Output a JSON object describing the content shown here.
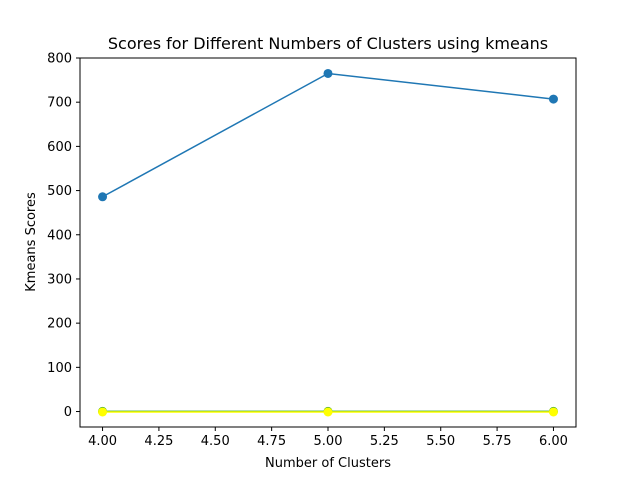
{
  "chart_data": {
    "type": "line",
    "title": "Scores for Different Numbers of Clusters using kmeans",
    "xlabel": "Number of Clusters",
    "ylabel": "Kmeans Scores",
    "xlim": [
      3.9,
      6.1
    ],
    "ylim": [
      -35,
      800
    ],
    "x_ticks": [
      "4.00",
      "4.25",
      "4.50",
      "4.75",
      "5.00",
      "5.25",
      "5.50",
      "5.75",
      "6.00"
    ],
    "x_tick_values": [
      4.0,
      4.25,
      4.5,
      4.75,
      5.0,
      5.25,
      5.5,
      5.75,
      6.0
    ],
    "y_ticks": [
      "0",
      "100",
      "200",
      "300",
      "400",
      "500",
      "600",
      "700",
      "800"
    ],
    "y_tick_values": [
      0,
      100,
      200,
      300,
      400,
      500,
      600,
      700,
      800
    ],
    "grid": false,
    "x": [
      4,
      5,
      6
    ],
    "series": [
      {
        "color": "#1f77b4",
        "marker": "circle",
        "values": [
          486,
          765,
          707
        ]
      },
      {
        "color": "#2ca02c",
        "marker": "circle",
        "values": [
          0.3,
          0.3,
          0.3
        ]
      },
      {
        "color": "#ffff00",
        "marker": "circle",
        "values": [
          -1,
          -1,
          -1
        ]
      }
    ]
  }
}
